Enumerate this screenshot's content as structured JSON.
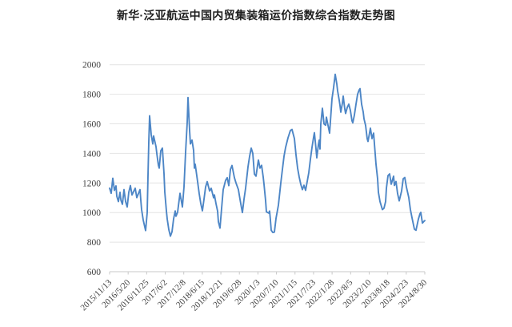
{
  "chart_data": {
    "type": "line",
    "title": "新华·泛亚航运中国内贸集装箱运价指数综合指数走势图",
    "xlabel": "",
    "ylabel": "",
    "grid": true,
    "legend": "none",
    "y_axis": {
      "min": 600,
      "max": 2000,
      "tick_step": 200,
      "tick_labels": [
        "600",
        "800",
        "1000",
        "1200",
        "1400",
        "1600",
        "1800",
        "2000"
      ]
    },
    "x_axis": {
      "tick_labels": [
        "2015/11/13",
        "2016/5/20",
        "2016/11/25",
        "2017/6/2",
        "2017/12/8",
        "2018/6/15",
        "2018/12/21",
        "2019/6/28",
        "2020/1/3",
        "2020/7/10",
        "2021/1/15",
        "2021/7/23",
        "2022/1/28",
        "2022/8/5",
        "2023/2/10",
        "2023/8/18",
        "2024/2/23",
        "2024/8/30"
      ],
      "frequency": "weekly",
      "tick_interval_weeks": 27
    },
    "series": [
      {
        "name": "综合指数",
        "color": "#4d86c6",
        "points": [
          [
            0.0,
            1165
          ],
          [
            0.0051,
            1130
          ],
          [
            0.0102,
            1232
          ],
          [
            0.0152,
            1150
          ],
          [
            0.0203,
            1180
          ],
          [
            0.0228,
            1110
          ],
          [
            0.0279,
            1074
          ],
          [
            0.033,
            1137
          ],
          [
            0.036,
            1083
          ],
          [
            0.0406,
            1056
          ],
          [
            0.0457,
            1155
          ],
          [
            0.0508,
            1074
          ],
          [
            0.0558,
            1038
          ],
          [
            0.0609,
            1137
          ],
          [
            0.066,
            1182
          ],
          [
            0.0711,
            1119
          ],
          [
            0.0812,
            1164
          ],
          [
            0.0863,
            1101
          ],
          [
            0.0964,
            1155
          ],
          [
            0.099,
            1084
          ],
          [
            0.1015,
            1020
          ],
          [
            0.1066,
            950
          ],
          [
            0.1117,
            902
          ],
          [
            0.1142,
            878
          ],
          [
            0.1193,
            1000
          ],
          [
            0.1218,
            1250
          ],
          [
            0.1244,
            1480
          ],
          [
            0.1269,
            1655
          ],
          [
            0.132,
            1527
          ],
          [
            0.1371,
            1464
          ],
          [
            0.1396,
            1518
          ],
          [
            0.1472,
            1446
          ],
          [
            0.1497,
            1400
          ],
          [
            0.1548,
            1319
          ],
          [
            0.1574,
            1300
          ],
          [
            0.1624,
            1418
          ],
          [
            0.1675,
            1436
          ],
          [
            0.1726,
            1264
          ],
          [
            0.1751,
            1138
          ],
          [
            0.1802,
            1011
          ],
          [
            0.1827,
            957
          ],
          [
            0.1878,
            885
          ],
          [
            0.1929,
            840
          ],
          [
            0.198,
            870
          ],
          [
            0.203,
            957
          ],
          [
            0.2081,
            1011
          ],
          [
            0.2107,
            975
          ],
          [
            0.2157,
            1002
          ],
          [
            0.2234,
            1130
          ],
          [
            0.231,
            1038
          ],
          [
            0.236,
            1174
          ],
          [
            0.2411,
            1409
          ],
          [
            0.2462,
            1608
          ],
          [
            0.2487,
            1778
          ],
          [
            0.2538,
            1554
          ],
          [
            0.2563,
            1464
          ],
          [
            0.2614,
            1490
          ],
          [
            0.2665,
            1420
          ],
          [
            0.269,
            1300
          ],
          [
            0.2716,
            1327
          ],
          [
            0.2792,
            1209
          ],
          [
            0.2843,
            1128
          ],
          [
            0.2893,
            1060
          ],
          [
            0.2944,
            1012
          ],
          [
            0.2995,
            1090
          ],
          [
            0.3046,
            1173
          ],
          [
            0.3096,
            1209
          ],
          [
            0.3173,
            1146
          ],
          [
            0.3223,
            1164
          ],
          [
            0.3299,
            1100
          ],
          [
            0.3325,
            1119
          ],
          [
            0.3376,
            1060
          ],
          [
            0.3426,
            1010
          ],
          [
            0.3452,
            937
          ],
          [
            0.3503,
            895
          ],
          [
            0.3553,
            1028
          ],
          [
            0.3604,
            1155
          ],
          [
            0.368,
            1218
          ],
          [
            0.3731,
            1236
          ],
          [
            0.3782,
            1182
          ],
          [
            0.3832,
            1291
          ],
          [
            0.3883,
            1318
          ],
          [
            0.3959,
            1236
          ],
          [
            0.401,
            1200
          ],
          [
            0.4086,
            1155
          ],
          [
            0.4137,
            1090
          ],
          [
            0.4188,
            1028
          ],
          [
            0.4213,
            1000
          ],
          [
            0.4264,
            1090
          ],
          [
            0.4315,
            1164
          ],
          [
            0.4391,
            1309
          ],
          [
            0.4442,
            1380
          ],
          [
            0.4492,
            1436
          ],
          [
            0.4543,
            1400
          ],
          [
            0.4594,
            1260
          ],
          [
            0.4645,
            1246
          ],
          [
            0.4695,
            1320
          ],
          [
            0.4721,
            1355
          ],
          [
            0.4772,
            1300
          ],
          [
            0.4822,
            1319
          ],
          [
            0.4873,
            1240
          ],
          [
            0.4898,
            1192
          ],
          [
            0.4949,
            1080
          ],
          [
            0.4975,
            1005
          ],
          [
            0.5051,
            996
          ],
          [
            0.5076,
            1010
          ],
          [
            0.5102,
            950
          ],
          [
            0.5127,
            880
          ],
          [
            0.5178,
            865
          ],
          [
            0.5228,
            868
          ],
          [
            0.5279,
            960
          ],
          [
            0.5355,
            1050
          ],
          [
            0.5431,
            1200
          ],
          [
            0.5482,
            1291
          ],
          [
            0.5533,
            1380
          ],
          [
            0.5583,
            1440
          ],
          [
            0.566,
            1505
          ],
          [
            0.5736,
            1555
          ],
          [
            0.5787,
            1562
          ],
          [
            0.5863,
            1500
          ],
          [
            0.5914,
            1390
          ],
          [
            0.5964,
            1300
          ],
          [
            0.6015,
            1240
          ],
          [
            0.6066,
            1190
          ],
          [
            0.6117,
            1155
          ],
          [
            0.6168,
            1185
          ],
          [
            0.6218,
            1150
          ],
          [
            0.6269,
            1210
          ],
          [
            0.632,
            1270
          ],
          [
            0.6371,
            1360
          ],
          [
            0.6421,
            1440
          ],
          [
            0.6472,
            1510
          ],
          [
            0.6497,
            1540
          ],
          [
            0.6548,
            1430
          ],
          [
            0.6574,
            1370
          ],
          [
            0.6624,
            1460
          ],
          [
            0.665,
            1490
          ],
          [
            0.6675,
            1430
          ],
          [
            0.6701,
            1600
          ],
          [
            0.6751,
            1705
          ],
          [
            0.6802,
            1600
          ],
          [
            0.6853,
            1590
          ],
          [
            0.6878,
            1645
          ],
          [
            0.6929,
            1590
          ],
          [
            0.698,
            1537
          ],
          [
            0.7056,
            1770
          ],
          [
            0.7107,
            1845
          ],
          [
            0.7157,
            1935
          ],
          [
            0.7208,
            1870
          ],
          [
            0.7234,
            1823
          ],
          [
            0.7284,
            1760
          ],
          [
            0.731,
            1724
          ],
          [
            0.7335,
            1679
          ],
          [
            0.7386,
            1740
          ],
          [
            0.7411,
            1787
          ],
          [
            0.7462,
            1700
          ],
          [
            0.7487,
            1670
          ],
          [
            0.7538,
            1710
          ],
          [
            0.7589,
            1733
          ],
          [
            0.764,
            1690
          ],
          [
            0.769,
            1620
          ],
          [
            0.7716,
            1607
          ],
          [
            0.7766,
            1660
          ],
          [
            0.7817,
            1733
          ],
          [
            0.7868,
            1800
          ],
          [
            0.7919,
            1830
          ],
          [
            0.7944,
            1838
          ],
          [
            0.7995,
            1733
          ],
          [
            0.8046,
            1680
          ],
          [
            0.8071,
            1634
          ],
          [
            0.8122,
            1589
          ],
          [
            0.8173,
            1499
          ],
          [
            0.8198,
            1481
          ],
          [
            0.8249,
            1540
          ],
          [
            0.8274,
            1571
          ],
          [
            0.8325,
            1500
          ],
          [
            0.835,
            1520
          ],
          [
            0.8376,
            1537
          ],
          [
            0.8452,
            1327
          ],
          [
            0.8503,
            1228
          ],
          [
            0.8528,
            1137
          ],
          [
            0.8579,
            1074
          ],
          [
            0.8655,
            1020
          ],
          [
            0.8706,
            1029
          ],
          [
            0.8756,
            1074
          ],
          [
            0.8782,
            1164
          ],
          [
            0.8832,
            1250
          ],
          [
            0.8883,
            1261
          ],
          [
            0.8934,
            1192
          ],
          [
            0.901,
            1246
          ],
          [
            0.9036,
            1183
          ],
          [
            0.9086,
            1210
          ],
          [
            0.9137,
            1128
          ],
          [
            0.9188,
            1079
          ],
          [
            0.9264,
            1146
          ],
          [
            0.9315,
            1228
          ],
          [
            0.9365,
            1237
          ],
          [
            0.9416,
            1173
          ],
          [
            0.9492,
            1101
          ],
          [
            0.9543,
            1020
          ],
          [
            0.9594,
            965
          ],
          [
            0.967,
            888
          ],
          [
            0.9721,
            880
          ],
          [
            0.9797,
            956
          ],
          [
            0.9848,
            992
          ],
          [
            0.9873,
            1001
          ],
          [
            0.9924,
            929
          ],
          [
            0.9975,
            941
          ],
          [
            1.0,
            945
          ]
        ]
      }
    ]
  },
  "style": {
    "line_color": "#4d86c6",
    "grid_color": "#e4e4e4",
    "axis_color": "#c9c9c9",
    "tick_label_color": "#3f3f3f",
    "title_color": "#1f1f1f",
    "background": "#ffffff"
  }
}
